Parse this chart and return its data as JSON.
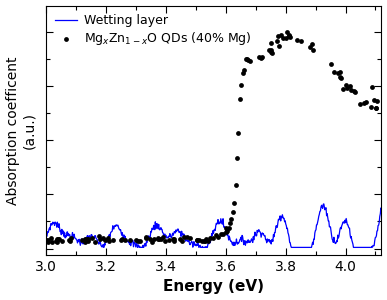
{
  "title": "",
  "xlabel": "Energy (eV)",
  "ylabel": "Absorption coefficent\n(a.u.)",
  "xlim": [
    3.0,
    4.12
  ],
  "legend1_label": "Wetting layer",
  "legend2_label": "Mg$_x$Zn$_{1\\text{-}x}$O QDs (40% Mg)",
  "line_color": "#0000ff",
  "dot_color": "#000000",
  "background_color": "#ffffff"
}
